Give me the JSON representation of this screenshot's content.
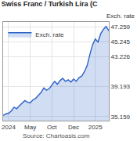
{
  "chart_data": {
    "type": "line",
    "title": "Swiss Franc / Turkish Lira (C",
    "y_label": "Exch. rate",
    "annotations": [
      "Source: Chartoasis.com"
    ],
    "categories": [
      null,
      null,
      "2024",
      null,
      null,
      null,
      null,
      null,
      null,
      null,
      "May",
      null,
      null,
      null,
      null,
      null,
      null,
      null,
      "Oct",
      null,
      null,
      null,
      null,
      null,
      null,
      null,
      "Dec",
      null,
      null,
      null,
      null,
      null,
      null,
      null,
      "2025",
      null,
      null,
      null,
      null,
      null
    ],
    "series": [
      {
        "name": "Exch. rate",
        "color": "#2a62c9",
        "values": [
          35.3,
          35.5,
          35.6,
          35.9,
          36.4,
          36.2,
          36.6,
          36.9,
          37.3,
          37.1,
          37.0,
          37.4,
          37.6,
          38.0,
          38.4,
          39.0,
          38.7,
          38.9,
          39.4,
          39.9,
          39.5,
          40.0,
          40.3,
          39.9,
          40.1,
          39.8,
          40.2,
          39.9,
          40.4,
          40.6,
          41.2,
          42.0,
          43.5,
          44.8,
          45.6,
          45.2,
          46.3,
          46.9,
          47.3,
          46.7
        ]
      }
    ],
    "ylim": [
      34.6,
      47.9
    ],
    "yticks": [
      35.159,
      39.193,
      43.226,
      45.245,
      47.259
    ],
    "grid": true,
    "legend": "top left"
  }
}
